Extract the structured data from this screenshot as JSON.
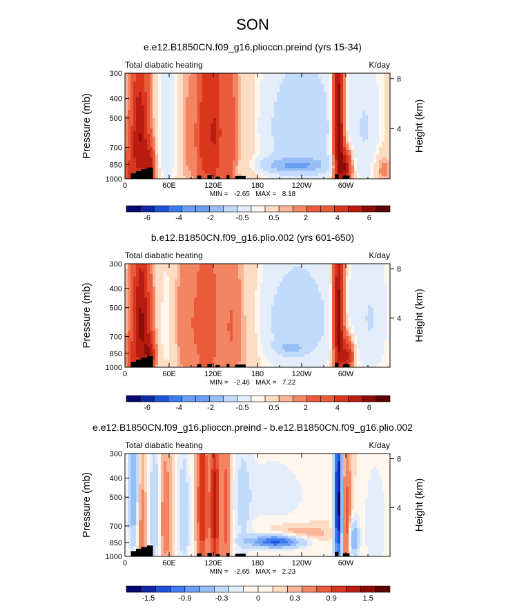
{
  "figure": {
    "season": "SON"
  },
  "chart_data": [
    {
      "type": "heatmap",
      "title": "e.e12.B1850CN.f09_g16.plioccn.preind (yrs 15-34)",
      "left_string": "Total diabatic heating",
      "right_string": "K/day",
      "ylabel": "Pressure (mb)",
      "ylabel_right": "Height (km)",
      "x_ticks": [
        "0",
        "60E",
        "120E",
        "180",
        "120W",
        "60W"
      ],
      "x_tick_lon": [
        0,
        60,
        120,
        180,
        240,
        300
      ],
      "xlim": [
        0,
        360
      ],
      "y_ticks": [
        "300",
        "400",
        "500",
        "700",
        "850",
        "1000"
      ],
      "y_tick_p": [
        300,
        400,
        500,
        700,
        850,
        1000
      ],
      "ylim": [
        1000,
        300
      ],
      "y_right_ticks": [
        "4",
        "8"
      ],
      "y_right_km": [
        4,
        8
      ],
      "stats": "MIN =   -2.65   MAX =   8.18",
      "colorbar_levels": [
        -7,
        -6,
        -5,
        -4,
        -3,
        -2,
        -1,
        -0.5,
        -0.25,
        0.25,
        0.5,
        1,
        2,
        3,
        4,
        5,
        6,
        7
      ],
      "colorbar_labels": [
        "-6",
        "-4",
        "-2",
        "-0.5",
        "0.5",
        "2",
        "4",
        "6"
      ],
      "features": [
        {
          "lon": 5,
          "p": 930,
          "wlon": 6,
          "wp": 150,
          "v": 1.5
        },
        {
          "lon": 20,
          "p": 620,
          "wlon": 9,
          "wp": 330,
          "v": 4.0
        },
        {
          "lon": 34,
          "p": 880,
          "wlon": 5,
          "wp": 140,
          "v": 3.0
        },
        {
          "lon": 58,
          "p": 600,
          "wlon": 10,
          "wp": 350,
          "v": -1.0
        },
        {
          "lon": 88,
          "p": 620,
          "wlon": 9,
          "wp": 350,
          "v": 0.7
        },
        {
          "lon": 108,
          "p": 600,
          "wlon": 7,
          "wp": 400,
          "v": 2.6
        },
        {
          "lon": 122,
          "p": 580,
          "wlon": 6,
          "wp": 420,
          "v": 2.6
        },
        {
          "lon": 140,
          "p": 600,
          "wlon": 8,
          "wp": 400,
          "v": 2.0
        },
        {
          "lon": 165,
          "p": 620,
          "wlon": 12,
          "wp": 400,
          "v": 0.4
        },
        {
          "lon": 240,
          "p": 560,
          "wlon": 45,
          "wp": 340,
          "v": -1.5
        },
        {
          "lon": 232,
          "p": 860,
          "wlon": 30,
          "wp": 55,
          "v": -2.4
        },
        {
          "lon": 290,
          "p": 560,
          "wlon": 5,
          "wp": 400,
          "v": 5.5
        },
        {
          "lon": 300,
          "p": 880,
          "wlon": 6,
          "wp": 120,
          "v": 4.0
        },
        {
          "lon": 328,
          "p": 560,
          "wlon": 15,
          "wp": 400,
          "v": -0.8
        },
        {
          "lon": 350,
          "p": 900,
          "wlon": 8,
          "wp": 110,
          "v": 0.9
        }
      ]
    },
    {
      "type": "heatmap",
      "title": "b.e12.B1850CN.f09_g16.plio.002 (yrs 601-650)",
      "left_string": "Total diabatic heating",
      "right_string": "K/day",
      "ylabel": "Pressure (mb)",
      "ylabel_right": "Height (km)",
      "x_ticks": [
        "0",
        "60E",
        "120E",
        "180",
        "120W",
        "60W"
      ],
      "x_tick_lon": [
        0,
        60,
        120,
        180,
        240,
        300
      ],
      "xlim": [
        0,
        360
      ],
      "y_ticks": [
        "300",
        "400",
        "500",
        "700",
        "850",
        "1000"
      ],
      "y_tick_p": [
        300,
        400,
        500,
        700,
        850,
        1000
      ],
      "ylim": [
        1000,
        300
      ],
      "y_right_ticks": [
        "4",
        "8"
      ],
      "y_right_km": [
        4,
        8
      ],
      "stats": "MIN =   -2.46   MAX =   7.22",
      "colorbar_levels": [
        -7,
        -6,
        -5,
        -4,
        -3,
        -2,
        -1,
        -0.5,
        -0.25,
        0.25,
        0.5,
        1,
        2,
        3,
        4,
        5,
        6,
        7
      ],
      "colorbar_labels": [
        "-6",
        "-4",
        "-2",
        "-0.5",
        "0.5",
        "2",
        "4",
        "6"
      ],
      "features": [
        {
          "lon": 8,
          "p": 930,
          "wlon": 6,
          "wp": 150,
          "v": 1.2
        },
        {
          "lon": 22,
          "p": 600,
          "wlon": 9,
          "wp": 350,
          "v": 4.2
        },
        {
          "lon": 34,
          "p": 880,
          "wlon": 5,
          "wp": 130,
          "v": 3.0
        },
        {
          "lon": 60,
          "p": 620,
          "wlon": 10,
          "wp": 350,
          "v": -0.6
        },
        {
          "lon": 82,
          "p": 600,
          "wlon": 14,
          "wp": 380,
          "v": 1.0
        },
        {
          "lon": 112,
          "p": 600,
          "wlon": 10,
          "wp": 400,
          "v": 1.8
        },
        {
          "lon": 145,
          "p": 620,
          "wlon": 12,
          "wp": 400,
          "v": 1.2
        },
        {
          "lon": 172,
          "p": 640,
          "wlon": 10,
          "wp": 380,
          "v": 0.4
        },
        {
          "lon": 235,
          "p": 580,
          "wlon": 45,
          "wp": 330,
          "v": -1.4
        },
        {
          "lon": 225,
          "p": 800,
          "wlon": 12,
          "wp": 40,
          "v": -1.6
        },
        {
          "lon": 290,
          "p": 560,
          "wlon": 5,
          "wp": 400,
          "v": 5.0
        },
        {
          "lon": 302,
          "p": 870,
          "wlon": 6,
          "wp": 120,
          "v": 3.5
        },
        {
          "lon": 335,
          "p": 560,
          "wlon": 18,
          "wp": 400,
          "v": -0.9
        }
      ]
    },
    {
      "type": "heatmap",
      "title": "e.e12.B1850CN.f09_g16.plioccn.preind - b.e12.B1850CN.f09_g16.plio.002",
      "left_string": "Total diabatic heating",
      "right_string": "K/day",
      "ylabel": "Pressure (mb)",
      "ylabel_right": "Height (km)",
      "x_ticks": [
        "0",
        "60E",
        "120E",
        "180",
        "120W",
        "60W"
      ],
      "x_tick_lon": [
        0,
        60,
        120,
        180,
        240,
        300
      ],
      "xlim": [
        0,
        360
      ],
      "y_ticks": [
        "300",
        "400",
        "500",
        "700",
        "850",
        "1000"
      ],
      "y_tick_p": [
        300,
        400,
        500,
        700,
        850,
        1000
      ],
      "ylim": [
        1000,
        300
      ],
      "y_right_ticks": [
        "4",
        "8"
      ],
      "y_right_km": [
        4,
        8
      ],
      "stats": "MIN =   -2.65   MAX =   2.23",
      "colorbar_levels": [
        -2.1,
        -1.8,
        -1.5,
        -1.2,
        -0.9,
        -0.6,
        -0.3,
        -0.15,
        0,
        0.15,
        0.3,
        0.6,
        0.9,
        1.2,
        1.5,
        1.8,
        2.1
      ],
      "colorbar_labels": [
        "-1.5",
        "-0.9",
        "-0.3",
        "0",
        "0.3",
        "0.9",
        "1.5"
      ],
      "features": [
        {
          "lon": 12,
          "p": 500,
          "wlon": 5,
          "wp": 300,
          "v": -0.9
        },
        {
          "lon": 22,
          "p": 700,
          "wlon": 5,
          "wp": 330,
          "v": 0.5
        },
        {
          "lon": 40,
          "p": 620,
          "wlon": 5,
          "wp": 330,
          "v": -0.6
        },
        {
          "lon": 55,
          "p": 650,
          "wlon": 6,
          "wp": 330,
          "v": 0.5
        },
        {
          "lon": 80,
          "p": 650,
          "wlon": 6,
          "wp": 330,
          "v": -0.5
        },
        {
          "lon": 105,
          "p": 560,
          "wlon": 5,
          "wp": 400,
          "v": 1.2
        },
        {
          "lon": 122,
          "p": 580,
          "wlon": 5,
          "wp": 400,
          "v": 1.4
        },
        {
          "lon": 138,
          "p": 600,
          "wlon": 4,
          "wp": 400,
          "v": 0.8
        },
        {
          "lon": 160,
          "p": 620,
          "wlon": 8,
          "wp": 380,
          "v": -0.3
        },
        {
          "lon": 205,
          "p": 840,
          "wlon": 25,
          "wp": 45,
          "v": -1.6
        },
        {
          "lon": 235,
          "p": 760,
          "wlon": 30,
          "wp": 50,
          "v": 0.35
        },
        {
          "lon": 200,
          "p": 480,
          "wlon": 40,
          "wp": 150,
          "v": -0.25
        },
        {
          "lon": 290,
          "p": 560,
          "wlon": 4,
          "wp": 380,
          "v": -2.3
        },
        {
          "lon": 300,
          "p": 700,
          "wlon": 5,
          "wp": 350,
          "v": 0.9
        },
        {
          "lon": 310,
          "p": 820,
          "wlon": 5,
          "wp": 120,
          "v": -1.0
        },
        {
          "lon": 340,
          "p": 700,
          "wlon": 12,
          "wp": 300,
          "v": -0.3
        }
      ]
    }
  ]
}
